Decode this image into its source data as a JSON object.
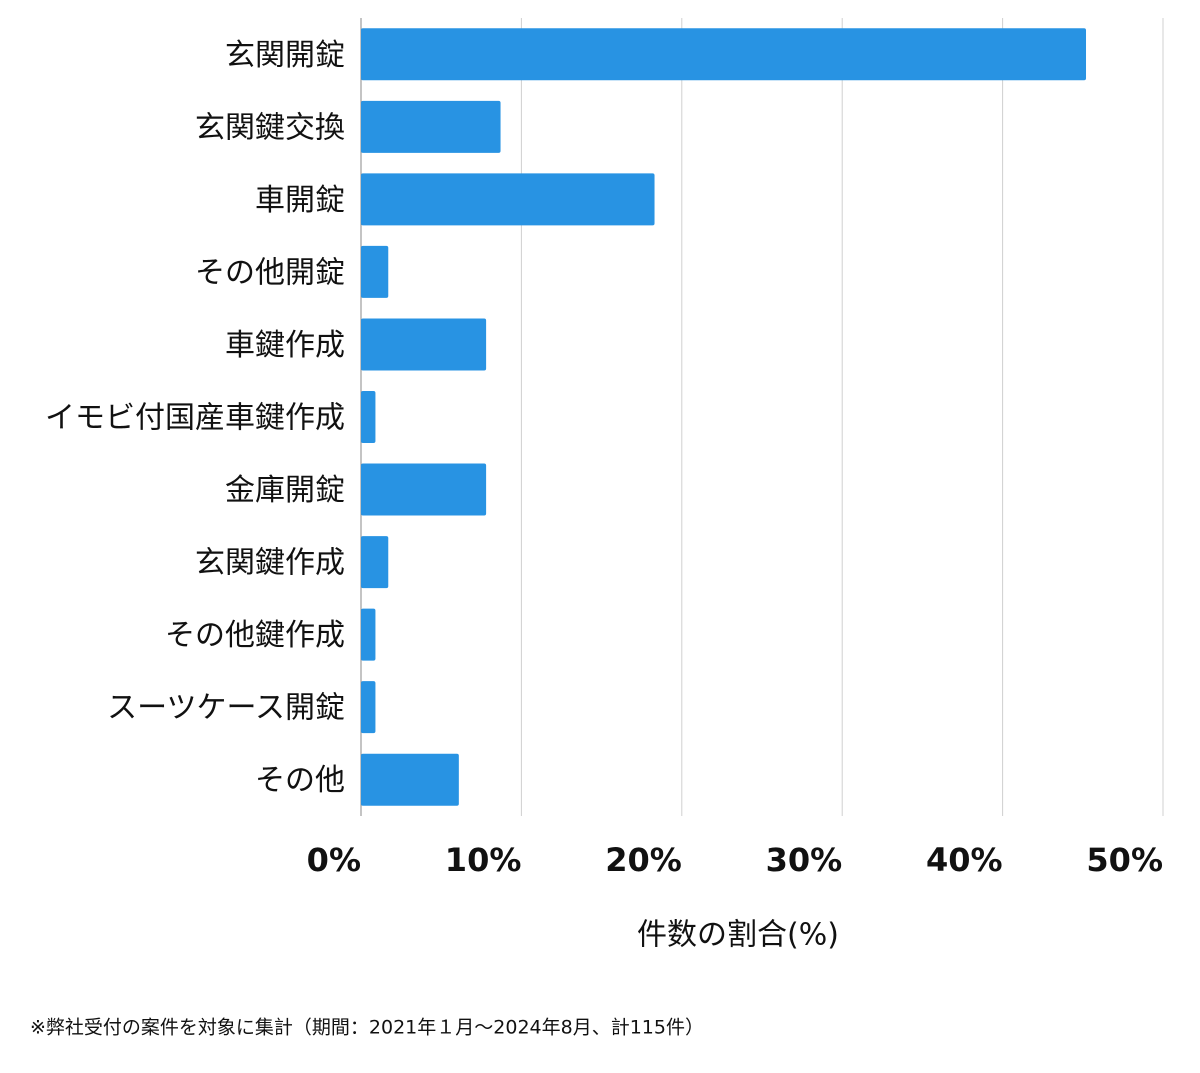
{
  "chart_data": {
    "type": "bar",
    "orientation": "horizontal",
    "categories": [
      "玄関開錠",
      "玄関鍵交換",
      "車開錠",
      "その他開錠",
      "車鍵作成",
      "イモビ付国産車鍵作成",
      "金庫開錠",
      "玄関鍵作成",
      "その他鍵作成",
      "スーツケース開錠",
      "その他"
    ],
    "values": [
      45.2,
      8.7,
      18.3,
      1.7,
      7.8,
      0.9,
      7.8,
      1.7,
      0.9,
      0.9,
      6.1
    ],
    "color": "#2893e3",
    "xlim": [
      0,
      50
    ],
    "xticks": [
      {
        "value": 0,
        "label": "0%"
      },
      {
        "value": 10,
        "label": "10%"
      },
      {
        "value": 20,
        "label": "20%"
      },
      {
        "value": 30,
        "label": "30%"
      },
      {
        "value": 40,
        "label": "40%"
      },
      {
        "value": 50,
        "label": "50%"
      }
    ],
    "x_label": "件数の割合(%)",
    "grid": true,
    "footnote": "※弊社受付の案件を対象に集計（期間：2021年１月～2024年8月、計115件）"
  }
}
